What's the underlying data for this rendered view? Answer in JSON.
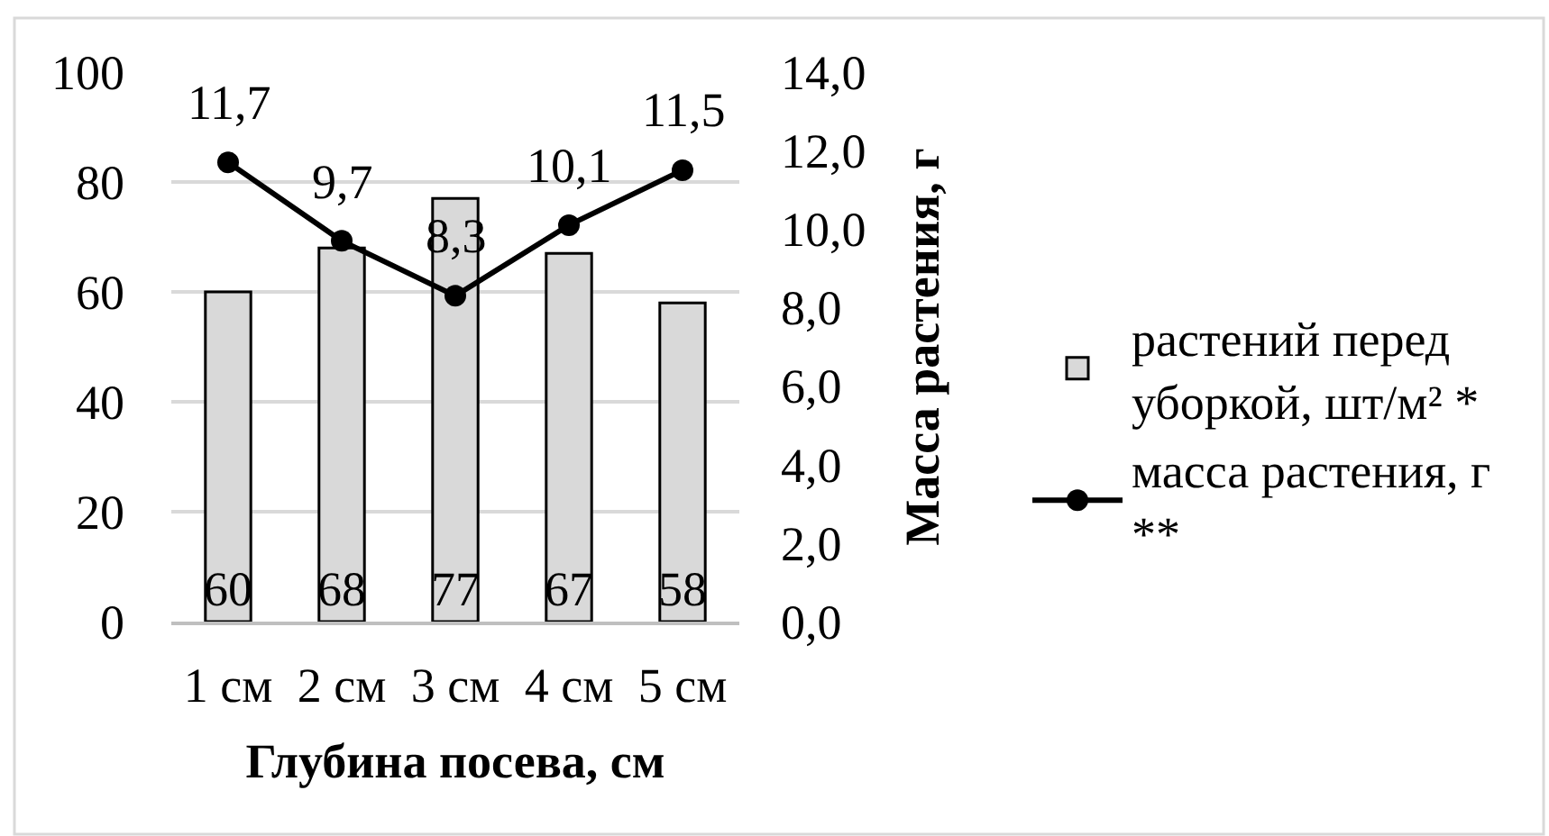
{
  "chart_data": {
    "type": "bar",
    "categories": [
      "1 см",
      "2 см",
      "3 см",
      "4 см",
      "5 см"
    ],
    "xlabel": "Глубина посева, см",
    "y2label": "Масса растения, г",
    "series": [
      {
        "name": "растений перед уборкой, шт/м² *",
        "color": "#d9d9d9",
        "values": [
          60,
          68,
          77,
          67,
          58
        ],
        "value_labels": [
          "60",
          "68",
          "77",
          "67",
          "58"
        ]
      },
      {
        "name": "масса растения, г **",
        "type": "line",
        "axis": "y2",
        "color": "#000000",
        "values": [
          11.7,
          9.7,
          8.3,
          10.1,
          11.5
        ],
        "value_labels": [
          "11,7",
          "9,7",
          "8,3",
          "10,1",
          "11,5"
        ],
        "marker": "circle",
        "line_style": "solid"
      }
    ],
    "ylim": [
      0,
      100
    ],
    "yticks": [
      0,
      20,
      40,
      60,
      80,
      100
    ],
    "y2lim": [
      0,
      14
    ],
    "y2ticks": [
      {
        "value": 0,
        "label": "0,0"
      },
      {
        "value": 2,
        "label": "2,0"
      },
      {
        "value": 4,
        "label": "4,0"
      },
      {
        "value": 6,
        "label": "6,0"
      },
      {
        "value": 8,
        "label": "8,0"
      },
      {
        "value": 10,
        "label": "10,0"
      },
      {
        "value": 12,
        "label": "12,0"
      },
      {
        "value": 14,
        "label": "14,0"
      }
    ],
    "grid": "y",
    "legend": "right"
  }
}
